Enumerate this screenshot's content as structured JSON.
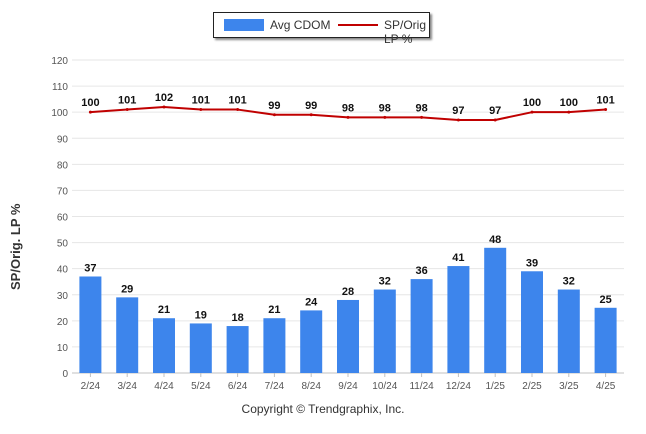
{
  "legend": {
    "bar_label": "Avg CDOM",
    "line_label": "SP/Orig LP %"
  },
  "ylabel": "SP/Orig. LP %",
  "credit": "Copyright © Trendgraphix, Inc.",
  "colors": {
    "bar": "#3d85ec",
    "line": "#c00000",
    "grid": "#e6e6e6"
  },
  "chart_data": {
    "type": "bar",
    "title": "",
    "xlabel": "",
    "ylabel": "SP/Orig. LP %",
    "ylim": [
      0,
      120
    ],
    "yticks": [
      0,
      10,
      20,
      30,
      40,
      50,
      60,
      70,
      80,
      90,
      100,
      110,
      120
    ],
    "categories": [
      "2/24",
      "3/24",
      "4/24",
      "5/24",
      "6/24",
      "7/24",
      "8/24",
      "9/24",
      "10/24",
      "11/24",
      "12/24",
      "1/25",
      "2/25",
      "3/25",
      "4/25"
    ],
    "series": [
      {
        "name": "Avg CDOM",
        "type": "bar",
        "values": [
          37,
          29,
          21,
          19,
          18,
          21,
          24,
          28,
          32,
          36,
          41,
          48,
          39,
          32,
          25
        ]
      },
      {
        "name": "SP/Orig LP %",
        "type": "line",
        "values": [
          100,
          101,
          102,
          101,
          101,
          99,
          99,
          98,
          98,
          98,
          97,
          97,
          100,
          100,
          101
        ]
      }
    ],
    "grid": true,
    "legend_position": "top"
  }
}
